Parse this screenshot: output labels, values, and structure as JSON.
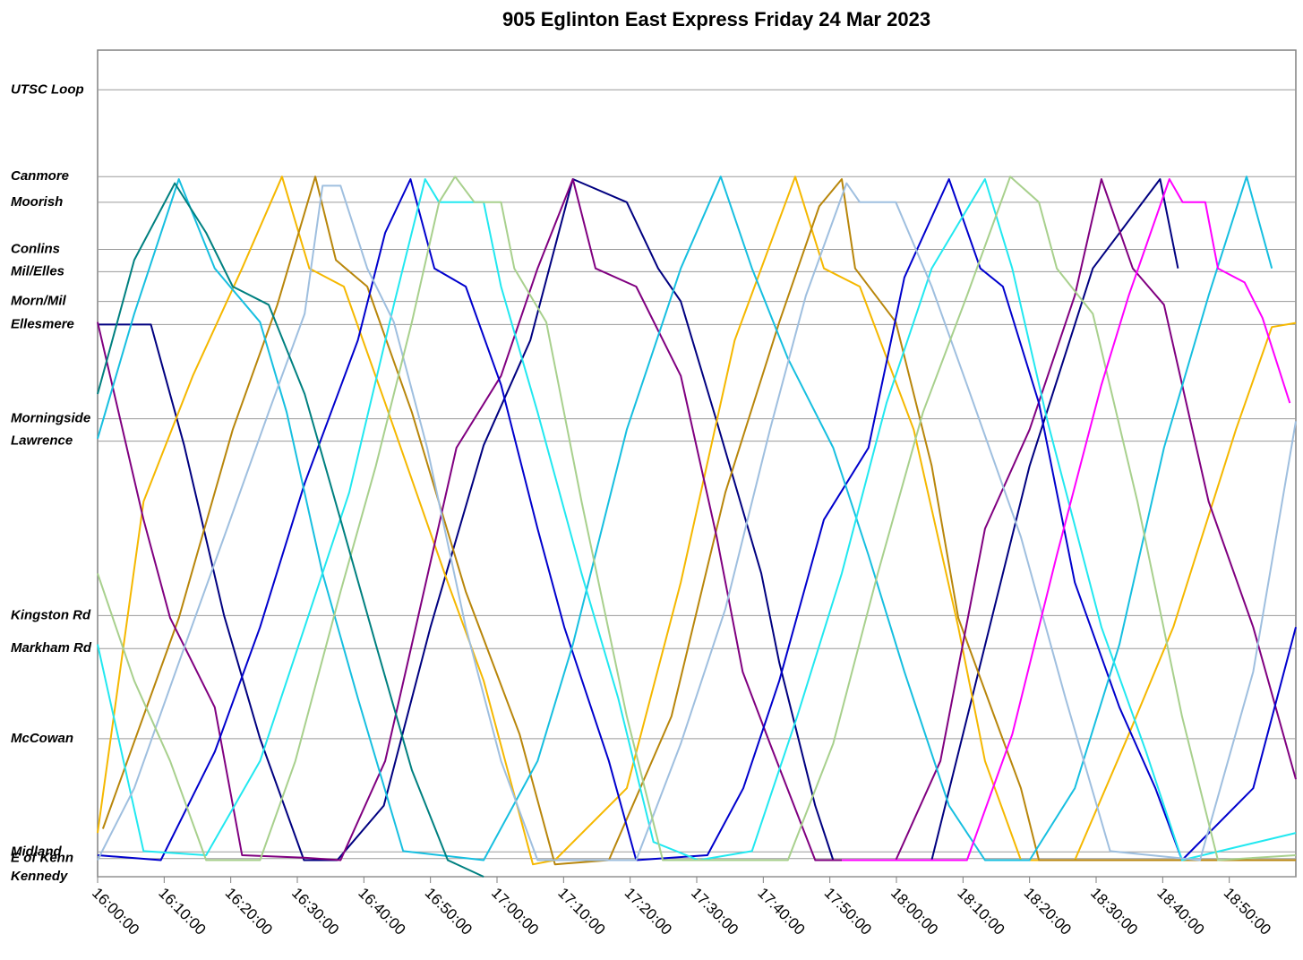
{
  "chart_data": {
    "type": "line",
    "title": "905 Eglinton East Express Friday 24 Mar 2023",
    "xlim": [
      0,
      180
    ],
    "ylim": [
      0,
      100
    ],
    "grid": true,
    "xticks": [
      {
        "value": 0,
        "label": "16:00:00"
      },
      {
        "value": 10,
        "label": "16:10:00"
      },
      {
        "value": 20,
        "label": "16:20:00"
      },
      {
        "value": 30,
        "label": "16:30:00"
      },
      {
        "value": 40,
        "label": "16:40:00"
      },
      {
        "value": 50,
        "label": "16:50:00"
      },
      {
        "value": 60,
        "label": "17:00:00"
      },
      {
        "value": 70,
        "label": "17:10:00"
      },
      {
        "value": 80,
        "label": "17:20:00"
      },
      {
        "value": 90,
        "label": "17:30:00"
      },
      {
        "value": 100,
        "label": "17:40:00"
      },
      {
        "value": 110,
        "label": "17:50:00"
      },
      {
        "value": 120,
        "label": "18:00:00"
      },
      {
        "value": 130,
        "label": "18:10:00"
      },
      {
        "value": 140,
        "label": "18:20:00"
      },
      {
        "value": 150,
        "label": "18:30:00"
      },
      {
        "value": 160,
        "label": "18:40:00"
      },
      {
        "value": 170,
        "label": "18:50:00"
      }
    ],
    "yticks": [
      {
        "value": 95.2,
        "label": "UTSC Loop"
      },
      {
        "value": 84.7,
        "label": "Canmore"
      },
      {
        "value": 81.6,
        "label": "Moorish"
      },
      {
        "value": 75.9,
        "label": "Conlins"
      },
      {
        "value": 73.2,
        "label": "Mil/Elles"
      },
      {
        "value": 69.6,
        "label": "Morn/Mil"
      },
      {
        "value": 66.8,
        "label": "Ellesmere"
      },
      {
        "value": 55.4,
        "label": "Morningside"
      },
      {
        "value": 52.7,
        "label": "Lawrence"
      },
      {
        "value": 31.6,
        "label": "Kingston Rd"
      },
      {
        "value": 27.6,
        "label": "Markham Rd"
      },
      {
        "value": 16.7,
        "label": "McCowan"
      },
      {
        "value": 3.0,
        "label": "Midland"
      },
      {
        "value": 2.2,
        "label": "E of Kenn"
      },
      {
        "value": 0,
        "label": "Kennedy"
      }
    ],
    "series": [
      {
        "color": "#000080",
        "x": [
          0,
          8,
          13,
          19,
          24.4,
          31,
          36,
          43,
          50,
          58,
          65,
          71.4,
          79.5,
          84.2,
          87.6,
          93,
          99.7,
          102.4,
          107.8,
          110.5,
          125.3,
          140,
          149.5,
          159.6,
          162.3
        ],
        "values": [
          66.8,
          66.8,
          52.2,
          31.6,
          16.7,
          2,
          2,
          8.6,
          30.2,
          52.2,
          64.9,
          84.4,
          81.6,
          73.6,
          69.6,
          55.1,
          36.7,
          25.9,
          8.6,
          2,
          2,
          49.7,
          73.6,
          84.4,
          73.6
        ]
      },
      {
        "color": "#f5b800",
        "x": [
          0,
          6.9,
          14.3,
          21.7,
          27.7,
          31.8,
          37,
          43.2,
          52.6,
          58,
          65.4,
          68.7,
          79.5,
          87.6,
          95.7,
          104.8,
          109.1,
          114.5,
          122.6,
          129.3,
          133.3,
          138.7,
          146.8,
          154.9,
          161.6,
          171,
          176.4,
          180
        ],
        "values": [
          5.3,
          45.4,
          60.6,
          73.6,
          84.7,
          73.6,
          71.4,
          57.3,
          35.6,
          23.7,
          1.5,
          2,
          10.7,
          35.6,
          64.9,
          84.7,
          73.6,
          71.4,
          54.1,
          30.2,
          14,
          2,
          2,
          17.2,
          30.2,
          54.1,
          66.5,
          67
        ]
      },
      {
        "color": "#b8860b",
        "x": [
          0.8,
          12.2,
          20.3,
          27,
          32.7,
          35.8,
          40.5,
          47.2,
          55.3,
          63.4,
          68.7,
          76.8,
          86.2,
          94.3,
          102.4,
          108.4,
          111.8,
          113.8,
          119.9,
          125.3,
          129.3,
          134.7,
          138.7,
          141.4,
          180
        ],
        "values": [
          5.8,
          31.3,
          54.1,
          69.2,
          84.7,
          74.6,
          71.4,
          56.2,
          34.5,
          17.2,
          1.5,
          2,
          19.4,
          46.5,
          67.1,
          81.1,
          84.4,
          73.6,
          67.1,
          49.7,
          31.3,
          19.4,
          10.7,
          2,
          2
        ]
      },
      {
        "color": "#800080",
        "x": [
          0,
          6.9,
          10.9,
          17.6,
          21.7,
          31,
          36.5,
          43.2,
          47.2,
          53.9,
          60.6,
          66.1,
          71.4,
          74.8,
          80.9,
          87.6,
          93,
          96.9,
          101,
          107.8,
          119.9,
          126.6,
          133.3,
          140,
          146.8,
          150.8,
          155.5,
          160.2,
          166.9,
          173.6,
          180
        ],
        "values": [
          67.1,
          43.2,
          31.3,
          20.5,
          2.6,
          2.3,
          2,
          14,
          28.1,
          51.9,
          60.6,
          73.6,
          84.4,
          73.6,
          71.4,
          60.6,
          41.1,
          24.8,
          16.1,
          2,
          2,
          14,
          42.1,
          54.1,
          70.3,
          84.4,
          73.6,
          69.2,
          45.4,
          30.2,
          11.8
        ]
      },
      {
        "color": "#0000cd",
        "x": [
          0,
          9.5,
          17.6,
          24.4,
          31.1,
          39.1,
          43.2,
          47,
          50.6,
          55.3,
          60.6,
          66.1,
          70.1,
          76.8,
          80.9,
          91.6,
          97,
          102.4,
          109.1,
          115.8,
          121.2,
          127.9,
          132.6,
          136,
          141.4,
          146.8,
          153.5,
          158.9,
          162.9,
          173.6,
          180
        ],
        "values": [
          2.6,
          2,
          15.1,
          30.2,
          47.6,
          64.9,
          77.9,
          84.4,
          73.6,
          71.4,
          59.5,
          42.1,
          30.2,
          14,
          2,
          2.6,
          10.7,
          23.7,
          43.2,
          51.9,
          72.5,
          84.4,
          73.6,
          71.4,
          57.3,
          35.6,
          20.5,
          10.7,
          2,
          10.7,
          30.2
        ]
      },
      {
        "color": "#17bfe0",
        "x": [
          0,
          5.5,
          12.2,
          17.6,
          24.4,
          28.4,
          33.8,
          39.1,
          45.9,
          58,
          66.1,
          71.4,
          79.5,
          87.6,
          93.6,
          98.3,
          103.7,
          110.5,
          115.8,
          121.2,
          127.9,
          133.3,
          140,
          146.8,
          153.5,
          160.2,
          166.9,
          172.6,
          176.4
        ],
        "values": [
          53,
          68.1,
          84.4,
          73.6,
          67.1,
          56.2,
          36.7,
          21.6,
          3.1,
          2,
          14,
          28.1,
          54.1,
          73.6,
          84.7,
          73.6,
          62.7,
          51.9,
          38.9,
          24.8,
          8.6,
          2,
          2,
          10.7,
          28.1,
          51.9,
          70.3,
          84.7,
          73.6
        ]
      },
      {
        "color": "#22e8f0",
        "x": [
          0,
          6.9,
          16.3,
          24.4,
          31.1,
          37.8,
          44.5,
          49.2,
          51.3,
          58,
          60.6,
          66.1,
          72.7,
          78.2,
          83.5,
          90.3,
          98.3,
          105.1,
          111.8,
          118.5,
          125.3,
          133.3,
          137.4,
          142.7,
          150.8,
          157.5,
          162.9,
          180
        ],
        "values": [
          28.1,
          3.1,
          2.6,
          14,
          30.2,
          46.5,
          69.2,
          84.4,
          81.6,
          81.6,
          71.4,
          56.2,
          36.7,
          21.6,
          4.2,
          2,
          3.1,
          19.4,
          36.7,
          57.3,
          73.6,
          84.4,
          73.6,
          55.1,
          30.2,
          15.1,
          2,
          5.3
        ]
      },
      {
        "color": "#9fbfdf",
        "x": [
          0,
          5.5,
          12.2,
          19,
          25.7,
          31.1,
          33.8,
          36.5,
          40.5,
          44.5,
          49.5,
          55.3,
          60.6,
          66.1,
          80.9,
          87.6,
          94.3,
          101,
          106.4,
          112.5,
          114.5,
          119.9,
          125.3,
          130.6,
          138.7,
          145.4,
          152.1,
          165.6,
          173.6,
          180
        ],
        "values": [
          2,
          10.7,
          25.9,
          41.1,
          56.2,
          68.1,
          83.6,
          83.6,
          73.6,
          67.1,
          51.9,
          30.2,
          14,
          2,
          2,
          16.1,
          32.4,
          54.1,
          70.3,
          83.9,
          81.6,
          81.6,
          71.4,
          59.5,
          41.1,
          21.6,
          3.1,
          2,
          24.8,
          55.1
        ]
      },
      {
        "color": "#a8d08d",
        "x": [
          0,
          5.5,
          10.9,
          16.3,
          24.4,
          29.7,
          36.5,
          41.8,
          47.2,
          51.3,
          53.7,
          56.6,
          60.6,
          62.6,
          67.4,
          72.7,
          79.5,
          84.9,
          103.7,
          110.5,
          117.2,
          124,
          130.6,
          137.1,
          141.4,
          144.1,
          149.5,
          156.2,
          162.9,
          168.3,
          180
        ],
        "values": [
          36.7,
          23.7,
          14,
          2,
          2,
          14,
          34.5,
          49.7,
          67.1,
          81.6,
          84.7,
          81.6,
          81.6,
          73.6,
          67.1,
          45.4,
          19.4,
          2,
          2,
          16.1,
          36.7,
          56.2,
          70.3,
          84.7,
          81.6,
          73.6,
          68.1,
          45.4,
          19.4,
          2,
          2.6
        ]
      },
      {
        "color": "#008080",
        "x": [
          0,
          5.5,
          11.6,
          16.3,
          20.3,
          25.7,
          31.1,
          36.5,
          41.8,
          47.2,
          52.6,
          58
        ],
        "values": [
          58.4,
          74.6,
          83.9,
          77.9,
          71.4,
          69.2,
          58.4,
          43.2,
          28.1,
          12.9,
          2,
          0
        ]
      },
      {
        "color": "#ff00ff",
        "x": [
          111.8,
          130.6,
          137.4,
          144.1,
          150.8,
          154.9,
          161,
          163,
          166.4,
          168.3,
          172.3,
          175,
          179.1
        ],
        "values": [
          2,
          2,
          17.2,
          38.9,
          59.5,
          70.3,
          84.4,
          81.6,
          81.6,
          73.6,
          71.9,
          67.6,
          57.3
        ]
      }
    ]
  }
}
